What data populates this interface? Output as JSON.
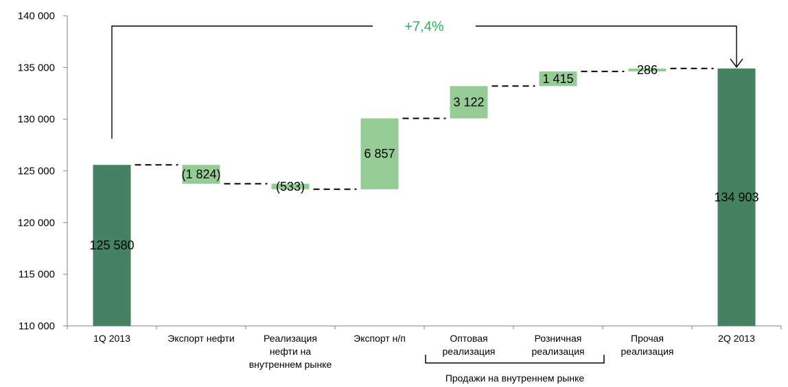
{
  "chart_data": {
    "type": "bar",
    "subtype": "waterfall",
    "categories": [
      "1Q 2013",
      "Экспорт нефти",
      "Реализация нефти на внутреннем рынке",
      "Экспорт н/п",
      "Оптовая реализация",
      "Розничная реализация",
      "Прочая реализация",
      "2Q 2013"
    ],
    "category_lines": [
      [
        "1Q 2013"
      ],
      [
        "Экспорт нефти"
      ],
      [
        "Реализация",
        "нефти на",
        "внутреннем рынке"
      ],
      [
        "Экспорт н/п"
      ],
      [
        "Оптовая",
        "реализация"
      ],
      [
        "Розничная",
        "реализация"
      ],
      [
        "Прочая",
        "реализация"
      ],
      [
        "2Q 2013"
      ]
    ],
    "values": [
      125580,
      -1824,
      -533,
      6857,
      3122,
      1415,
      286,
      134903
    ],
    "kinds": [
      "total",
      "delta",
      "delta",
      "delta",
      "delta",
      "delta",
      "delta",
      "total"
    ],
    "data_labels": [
      "125 580",
      "(1 824)",
      "(533)",
      "6 857",
      "3 122",
      "1 415",
      "286",
      "134 903"
    ],
    "ylim": [
      110000,
      140000
    ],
    "yticks": [
      110000,
      115000,
      120000,
      125000,
      130000,
      135000,
      140000
    ],
    "ytick_labels": [
      "110 000",
      "115 000",
      "120 000",
      "125 000",
      "130 000",
      "135 000",
      "140 000"
    ],
    "change_annotation": "+7,4%",
    "group_label": "Продажи на внутреннем рынке",
    "group_range": [
      4,
      6
    ],
    "colors": {
      "total": "#448262",
      "delta": "#95cc95",
      "annotation": "#2bb35a",
      "axis": "#808080"
    }
  }
}
